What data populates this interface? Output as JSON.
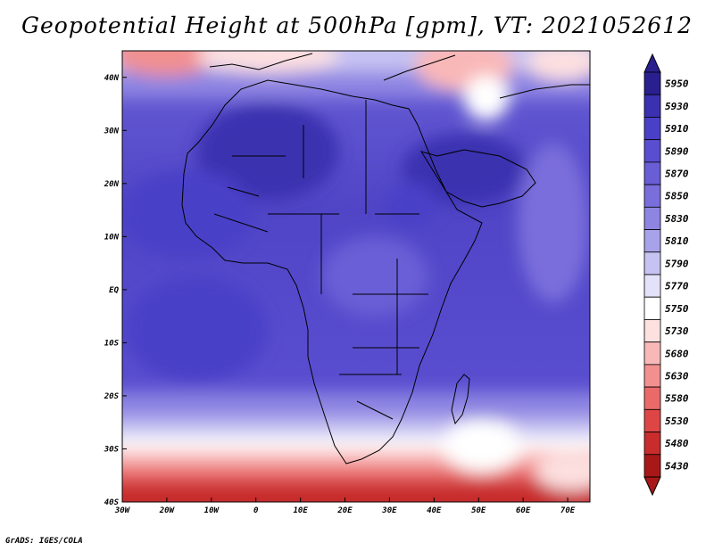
{
  "title": "Geopotential Height at 500hPa [gpm], VT: 2021052612",
  "credit": "GrADS: IGES/COLA",
  "map": {
    "lat_labels": [
      "40N",
      "30N",
      "20N",
      "10N",
      "EQ",
      "10S",
      "20S",
      "30S",
      "40S"
    ],
    "lon_labels": [
      "30W",
      "20W",
      "10W",
      "0",
      "10E",
      "20E",
      "30E",
      "40E",
      "50E",
      "60E",
      "70E"
    ],
    "lat_range": [
      -40,
      45
    ],
    "lon_range": [
      -30,
      75
    ]
  },
  "colorbar": {
    "levels": [
      "5950",
      "5930",
      "5910",
      "5890",
      "5870",
      "5850",
      "5830",
      "5810",
      "5790",
      "5770",
      "5750",
      "5730",
      "5680",
      "5630",
      "5580",
      "5530",
      "5480",
      "5430"
    ],
    "colors": [
      "#2a1f8f",
      "#3a30b0",
      "#4a40c8",
      "#5a4ed0",
      "#6a5ed6",
      "#7a6edc",
      "#8e85e2",
      "#a8a2ea",
      "#c6c2f2",
      "#e4e2fa",
      "#ffffff",
      "#fde0e0",
      "#f9b8b8",
      "#f29090",
      "#ea6a6a",
      "#de4646",
      "#c82c2c",
      "#a81818"
    ]
  }
}
